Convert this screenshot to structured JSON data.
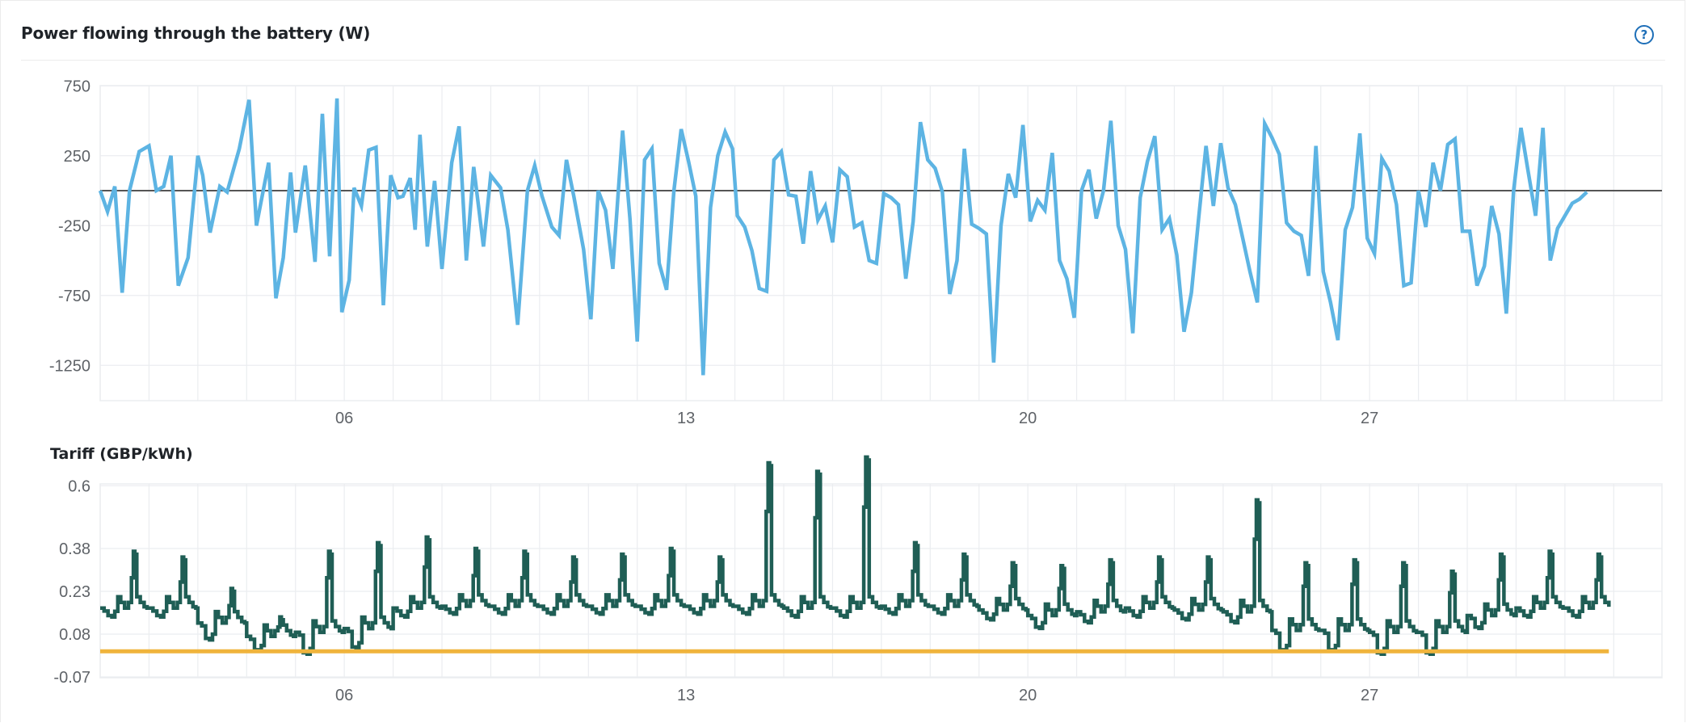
{
  "card": {
    "title": "Power flowing through the battery (W)",
    "help_icon": "question-circle-icon",
    "help_glyph": "?"
  },
  "colors": {
    "power_line": "#5db4e3",
    "zero_line": "#555555",
    "tariff_line": "#1f5e55",
    "threshold_line": "#f0b43c",
    "grid": "#ebedf0",
    "axis_text": "#5f6368",
    "help_icon": "#1e6fb8"
  },
  "chart_data": [
    {
      "type": "line",
      "title": "Power flowing through the battery (W)",
      "xlabel": "",
      "ylabel": "W",
      "x_tick_labels": [
        "06",
        "13",
        "20",
        "27"
      ],
      "x_tick_days": [
        6,
        13,
        20,
        27
      ],
      "x_range_days": [
        1,
        33
      ],
      "y_ticks": [
        750,
        250,
        -250,
        -750,
        -1250
      ],
      "ylim": [
        -1560,
        860
      ],
      "grid": true,
      "legend": "none",
      "reference_lines": [
        {
          "y": 0,
          "color": "#555555"
        }
      ],
      "series": [
        {
          "name": "Battery power",
          "color": "#5db4e3",
          "x_day": [
            1.0,
            1.15,
            1.3,
            1.45,
            1.6,
            1.8,
            2.0,
            2.15,
            2.3,
            2.45,
            2.6,
            2.8,
            3.0,
            3.1,
            3.25,
            3.45,
            3.6,
            3.85,
            4.05,
            4.2,
            4.45,
            4.6,
            4.75,
            4.9,
            5.0,
            5.2,
            5.4,
            5.55,
            5.7,
            5.85,
            5.95,
            6.1,
            6.2,
            6.35,
            6.5,
            6.65,
            6.8,
            6.95,
            7.1,
            7.2,
            7.35,
            7.45,
            7.55,
            7.7,
            7.85,
            8.0,
            8.2,
            8.35,
            8.5,
            8.65,
            8.85,
            9.0,
            9.2,
            9.35,
            9.55,
            9.75,
            9.9,
            10.05,
            10.25,
            10.4,
            10.55,
            10.7,
            10.9,
            11.05,
            11.2,
            11.35,
            11.5,
            11.7,
            11.85,
            12.0,
            12.15,
            12.3,
            12.45,
            12.6,
            12.75,
            12.9,
            13.05,
            13.2,
            13.35,
            13.5,
            13.65,
            13.8,
            13.95,
            14.05,
            14.2,
            14.35,
            14.5,
            14.65,
            14.8,
            14.95,
            15.1,
            15.25,
            15.4,
            15.55,
            15.7,
            15.85,
            16.0,
            16.15,
            16.3,
            16.45,
            16.6,
            16.75,
            16.9,
            17.05,
            17.2,
            17.35,
            17.5,
            17.65,
            17.8,
            17.95,
            18.1,
            18.25,
            18.4,
            18.55,
            18.7,
            18.85,
            19.0,
            19.15,
            19.3,
            19.45,
            19.6,
            19.75,
            19.9,
            20.05,
            20.2,
            20.35,
            20.5,
            20.65,
            20.8,
            20.95,
            21.1,
            21.25,
            21.4,
            21.55,
            21.7,
            21.85,
            22.0,
            22.15,
            22.3,
            22.45,
            22.6,
            22.75,
            22.9,
            23.05,
            23.2,
            23.35,
            23.5,
            23.65,
            23.8,
            23.95,
            24.1,
            24.25,
            24.4,
            24.55,
            24.7,
            24.85,
            25.0,
            25.15,
            25.3,
            25.45,
            25.6,
            25.75,
            25.9,
            26.05,
            26.2,
            26.35,
            26.5,
            26.65,
            26.8,
            26.95,
            27.1,
            27.25,
            27.4,
            27.55,
            27.7,
            27.85,
            28.0,
            28.15,
            28.3,
            28.45,
            28.6,
            28.75,
            28.9,
            29.05,
            29.2,
            29.35,
            29.5,
            29.65,
            29.8,
            29.95,
            30.1,
            30.25,
            30.4,
            30.55,
            30.7,
            30.85,
            31.0,
            31.15,
            31.3,
            31.45,
            31.6,
            31.75,
            31.9
          ],
          "values": [
            0,
            -150,
            30,
            -730,
            0,
            280,
            320,
            0,
            30,
            250,
            -680,
            -480,
            250,
            110,
            -300,
            30,
            -10,
            300,
            650,
            -250,
            200,
            -770,
            -480,
            130,
            -300,
            180,
            -510,
            550,
            -470,
            660,
            -870,
            -640,
            20,
            -110,
            290,
            310,
            -820,
            110,
            -50,
            -40,
            90,
            -280,
            400,
            -400,
            70,
            -560,
            200,
            460,
            -500,
            170,
            -400,
            110,
            20,
            -280,
            -960,
            0,
            180,
            -40,
            -260,
            -320,
            220,
            -40,
            -420,
            -920,
            0,
            -140,
            -560,
            430,
            -200,
            -1080,
            220,
            300,
            -520,
            -710,
            0,
            440,
            210,
            -40,
            -1320,
            -120,
            250,
            420,
            300,
            -180,
            -260,
            -430,
            -700,
            -720,
            220,
            280,
            -30,
            -40,
            -380,
            140,
            -210,
            -110,
            -370,
            150,
            100,
            -260,
            -230,
            -500,
            -520,
            -20,
            -50,
            -100,
            -630,
            -220,
            490,
            220,
            160,
            -10,
            -740,
            -500,
            300,
            -240,
            -270,
            -310,
            -1230,
            -250,
            120,
            -50,
            470,
            -220,
            -70,
            -140,
            270,
            -500,
            -630,
            -910,
            0,
            150,
            -200,
            0,
            500,
            -250,
            -420,
            -1020,
            -50,
            210,
            390,
            -280,
            -200,
            -460,
            -1010,
            -730,
            -190,
            320,
            -110,
            340,
            20,
            -100,
            -340,
            -580,
            -800,
            480,
            380,
            260,
            -230,
            -290,
            -320,
            -610,
            320,
            -580,
            -800,
            -1070,
            -280,
            -120,
            410,
            -340,
            -450,
            230,
            140,
            -100,
            -680,
            -660,
            0,
            -260,
            200,
            0,
            330,
            370,
            -290,
            -290,
            -680,
            -540,
            -110,
            -310,
            -880,
            0,
            450,
            130,
            -180,
            450,
            -500,
            -270,
            -180,
            -90,
            -60,
            -10
          ]
        }
      ]
    },
    {
      "type": "line",
      "title": "Tariff (GBP/kWh)",
      "xlabel": "",
      "ylabel": "GBP/kWh",
      "x_tick_labels": [
        "06",
        "13",
        "20",
        "27"
      ],
      "x_tick_days": [
        6,
        13,
        20,
        27
      ],
      "x_range_days": [
        1,
        33
      ],
      "y_ticks": [
        0.6,
        0.38,
        0.23,
        0.08,
        -0.07
      ],
      "ylim": [
        -0.07,
        0.615
      ],
      "grid": true,
      "legend": "none",
      "series": [
        {
          "name": "Tariff",
          "color": "#1f5e55",
          "daily_peaks": [
            0.37,
            0.35,
            0.24,
            0.14,
            0.37,
            0.4,
            0.42,
            0.38,
            0.37,
            0.35,
            0.36,
            0.38,
            0.35,
            0.68,
            0.65,
            0.7,
            0.4,
            0.36,
            0.33,
            0.32,
            0.34,
            0.35,
            0.35,
            0.55,
            0.33,
            0.34,
            0.33,
            0.3,
            0.36,
            0.37,
            0.36,
            0.34
          ],
          "daily_mins": [
            0.14,
            0.14,
            0.06,
            0.02,
            0.01,
            0.03,
            0.14,
            0.15,
            0.15,
            0.15,
            0.15,
            0.15,
            0.15,
            0.15,
            0.14,
            0.14,
            0.15,
            0.15,
            0.13,
            0.1,
            0.12,
            0.14,
            0.13,
            0.12,
            0.02,
            0.02,
            0.01,
            0.01,
            0.1,
            0.14,
            0.14,
            0.02
          ]
        },
        {
          "name": "Threshold",
          "color": "#f0b43c",
          "values": [
            0.02
          ]
        }
      ]
    }
  ],
  "subchart": {
    "title": "Tariff (GBP/kWh)"
  }
}
